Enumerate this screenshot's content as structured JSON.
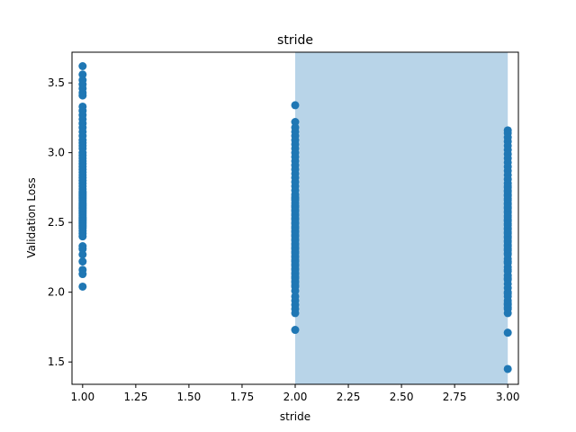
{
  "chart_data": {
    "type": "scatter",
    "title": "stride",
    "xlabel": "stride",
    "ylabel": "Validation Loss",
    "xlim": [
      0.95,
      3.05
    ],
    "ylim": [
      1.34,
      3.72
    ],
    "xticks": [
      1.0,
      1.25,
      1.5,
      1.75,
      2.0,
      2.25,
      2.5,
      2.75,
      3.0
    ],
    "xtick_labels": [
      "1.00",
      "1.25",
      "1.50",
      "1.75",
      "2.00",
      "2.25",
      "2.50",
      "2.75",
      "3.00"
    ],
    "yticks": [
      1.5,
      2.0,
      2.5,
      3.0,
      3.5
    ],
    "ytick_labels": [
      "1.5",
      "2.0",
      "2.5",
      "3.0",
      "3.5"
    ],
    "grid": false,
    "highlight_span": {
      "x_start": 2.0,
      "x_end": 3.0,
      "color": "#b8d4e8"
    },
    "point_color": "#1f77b4",
    "series": [
      {
        "x": [
          1,
          1,
          1,
          1,
          1,
          1,
          1,
          1,
          1,
          1,
          1,
          1,
          1,
          1,
          1,
          1,
          1,
          1,
          1,
          1,
          1,
          1,
          1,
          1,
          1,
          1,
          1,
          1,
          1,
          1,
          1,
          1,
          1,
          1,
          1,
          1,
          1,
          1,
          1,
          1,
          1,
          1,
          1,
          1,
          1,
          1,
          1,
          1,
          1,
          1,
          1,
          1,
          1,
          1,
          1,
          1,
          1,
          1,
          1,
          1,
          1,
          1,
          1,
          1,
          1,
          1,
          1,
          1,
          1,
          1
        ],
        "y": [
          3.62,
          3.56,
          3.52,
          3.49,
          3.46,
          3.43,
          3.41,
          3.33,
          3.3,
          3.27,
          3.24,
          3.21,
          3.18,
          3.15,
          3.12,
          3.09,
          3.07,
          3.05,
          3.03,
          3.0,
          2.98,
          2.96,
          2.94,
          2.92,
          2.9,
          2.88,
          2.86,
          2.84,
          2.82,
          2.8,
          2.78,
          2.76,
          2.74,
          2.72,
          2.7,
          2.68,
          2.66,
          2.64,
          2.62,
          2.6,
          2.58,
          2.56,
          2.54,
          2.52,
          2.5,
          2.48,
          2.46,
          2.44,
          2.42,
          2.4,
          2.33,
          2.31,
          2.27,
          2.22,
          2.16,
          2.13,
          2.04,
          2.71,
          2.69,
          2.67,
          2.65,
          2.63,
          2.61,
          2.59,
          2.57,
          2.55,
          2.53,
          2.51,
          2.49,
          2.47
        ]
      },
      {
        "x": [
          2,
          2,
          2,
          2,
          2,
          2,
          2,
          2,
          2,
          2,
          2,
          2,
          2,
          2,
          2,
          2,
          2,
          2,
          2,
          2,
          2,
          2,
          2,
          2,
          2,
          2,
          2,
          2,
          2,
          2,
          2,
          2,
          2,
          2,
          2,
          2,
          2,
          2,
          2,
          2,
          2,
          2,
          2,
          2,
          2,
          2,
          2,
          2,
          2,
          2,
          2,
          2,
          2,
          2,
          2,
          2,
          2,
          2,
          2,
          2,
          2,
          2,
          2,
          2,
          2,
          2,
          2,
          2,
          2,
          2
        ],
        "y": [
          3.34,
          3.22,
          3.18,
          3.15,
          3.12,
          3.09,
          3.06,
          3.03,
          3.0,
          2.97,
          2.94,
          2.91,
          2.88,
          2.85,
          2.82,
          2.79,
          2.76,
          2.73,
          2.7,
          2.67,
          2.64,
          2.61,
          2.58,
          2.55,
          2.52,
          2.49,
          2.46,
          2.43,
          2.4,
          2.37,
          2.34,
          2.31,
          2.28,
          2.25,
          2.22,
          2.19,
          2.16,
          2.13,
          2.1,
          2.07,
          2.04,
          2.01,
          1.97,
          1.94,
          1.91,
          1.88,
          1.85,
          1.73,
          2.68,
          2.66,
          2.62,
          2.59,
          2.56,
          2.53,
          2.5,
          2.47,
          2.44,
          2.41,
          2.38,
          2.35,
          2.32,
          2.29,
          2.26,
          2.23,
          2.2,
          2.17,
          2.14,
          2.11,
          2.08,
          2.05
        ]
      },
      {
        "x": [
          3,
          3,
          3,
          3,
          3,
          3,
          3,
          3,
          3,
          3,
          3,
          3,
          3,
          3,
          3,
          3,
          3,
          3,
          3,
          3,
          3,
          3,
          3,
          3,
          3,
          3,
          3,
          3,
          3,
          3,
          3,
          3,
          3,
          3,
          3,
          3,
          3,
          3,
          3,
          3,
          3,
          3,
          3,
          3,
          3,
          3,
          3,
          3,
          3,
          3,
          3,
          3,
          3,
          3,
          3,
          3,
          3,
          3,
          3,
          3,
          3,
          3,
          3,
          3,
          3,
          3,
          3,
          3,
          3,
          3
        ],
        "y": [
          3.16,
          3.14,
          3.11,
          3.08,
          3.05,
          3.02,
          2.99,
          2.96,
          2.93,
          2.9,
          2.87,
          2.84,
          2.81,
          2.78,
          2.75,
          2.72,
          2.69,
          2.66,
          2.63,
          2.6,
          2.57,
          2.54,
          2.51,
          2.48,
          2.45,
          2.42,
          2.39,
          2.36,
          2.33,
          2.3,
          2.27,
          2.24,
          2.21,
          2.18,
          2.15,
          2.12,
          2.09,
          2.06,
          2.0,
          1.97,
          1.94,
          1.91,
          1.88,
          1.85,
          1.71,
          1.45,
          2.76,
          2.7,
          2.64,
          2.58,
          2.52,
          2.46,
          2.4,
          2.34,
          2.28,
          2.22,
          2.16,
          2.1,
          2.03,
          1.99,
          1.92,
          1.89,
          2.73,
          2.67,
          2.61,
          2.55,
          2.49,
          2.43,
          2.37,
          2.31
        ]
      }
    ]
  }
}
